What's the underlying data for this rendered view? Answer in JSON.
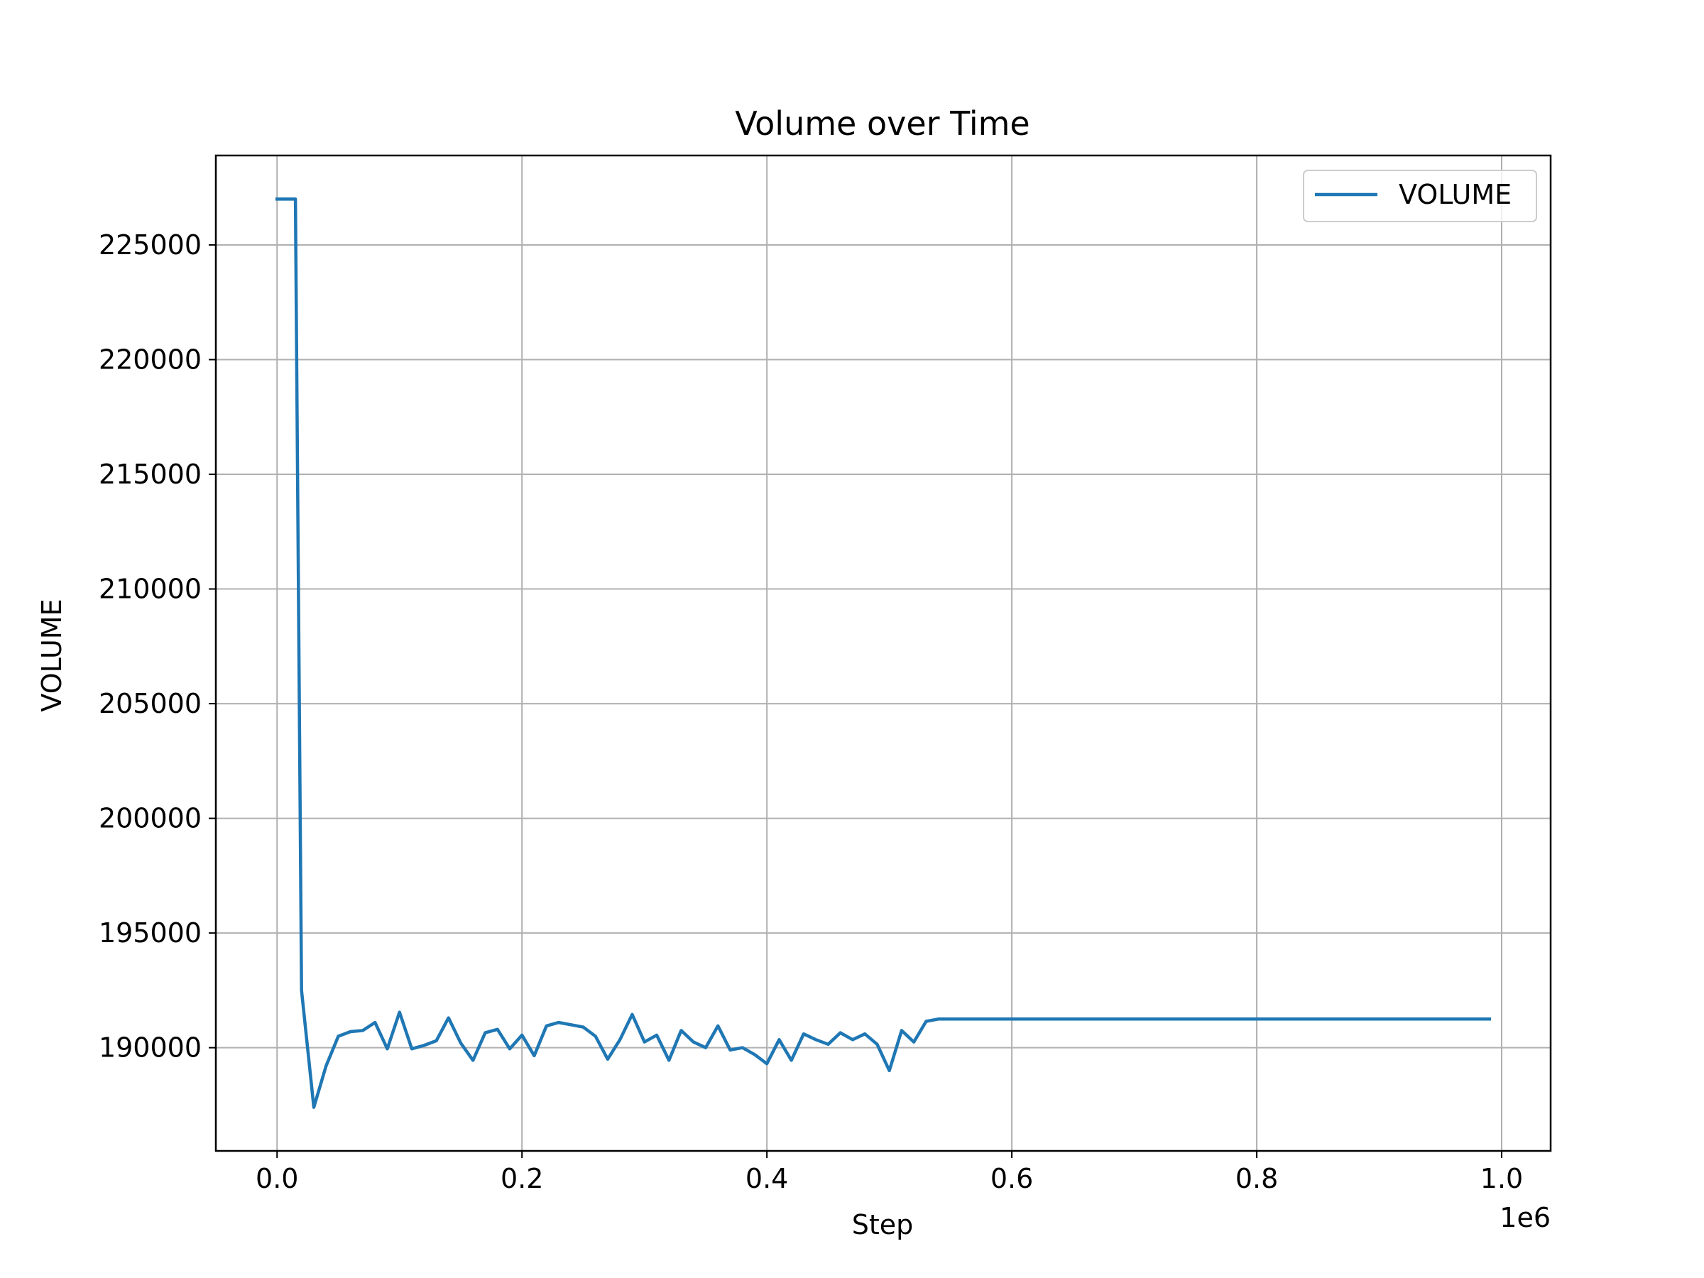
{
  "chart_data": {
    "type": "line",
    "title": "Volume over Time",
    "xlabel": "Step",
    "ylabel": "VOLUME",
    "x_offset_label": "1e6",
    "xlim": [
      -0.05,
      1.04
    ],
    "ylim": [
      185500,
      228900
    ],
    "grid": true,
    "legend_position": "top-right",
    "x_ticks": [
      {
        "value": 0.0,
        "label": "0.0"
      },
      {
        "value": 0.2,
        "label": "0.2"
      },
      {
        "value": 0.4,
        "label": "0.4"
      },
      {
        "value": 0.6,
        "label": "0.6"
      },
      {
        "value": 0.8,
        "label": "0.8"
      },
      {
        "value": 1.0,
        "label": "1.0"
      }
    ],
    "y_ticks": [
      {
        "value": 190000,
        "label": "190000"
      },
      {
        "value": 195000,
        "label": "195000"
      },
      {
        "value": 200000,
        "label": "200000"
      },
      {
        "value": 205000,
        "label": "205000"
      },
      {
        "value": 210000,
        "label": "210000"
      },
      {
        "value": 215000,
        "label": "215000"
      },
      {
        "value": 220000,
        "label": "220000"
      },
      {
        "value": 225000,
        "label": "225000"
      }
    ],
    "series": [
      {
        "name": "VOLUME",
        "color": "#1f77b4",
        "x": [
          0.0,
          0.015,
          0.02,
          0.03,
          0.04,
          0.05,
          0.06,
          0.07,
          0.08,
          0.09,
          0.1,
          0.11,
          0.12,
          0.13,
          0.14,
          0.15,
          0.16,
          0.17,
          0.18,
          0.19,
          0.2,
          0.21,
          0.22,
          0.23,
          0.24,
          0.25,
          0.26,
          0.27,
          0.28,
          0.29,
          0.3,
          0.31,
          0.32,
          0.33,
          0.34,
          0.35,
          0.36,
          0.37,
          0.38,
          0.39,
          0.4,
          0.41,
          0.42,
          0.43,
          0.44,
          0.45,
          0.46,
          0.47,
          0.48,
          0.49,
          0.5,
          0.51,
          0.52,
          0.53,
          0.54,
          0.99
        ],
        "y": [
          227000,
          227000,
          192500,
          187400,
          189200,
          190500,
          190700,
          190750,
          191100,
          189950,
          191550,
          189950,
          190100,
          190300,
          191300,
          190200,
          189450,
          190650,
          190800,
          189950,
          190550,
          189650,
          190950,
          191100,
          191000,
          190900,
          190500,
          189500,
          190350,
          191450,
          190250,
          190550,
          189450,
          190750,
          190250,
          190000,
          190950,
          189900,
          190000,
          189700,
          189300,
          190350,
          189450,
          190600,
          190350,
          190150,
          190650,
          190350,
          190600,
          190150,
          189000,
          190750,
          190250,
          191150,
          191250,
          191250
        ]
      }
    ]
  }
}
